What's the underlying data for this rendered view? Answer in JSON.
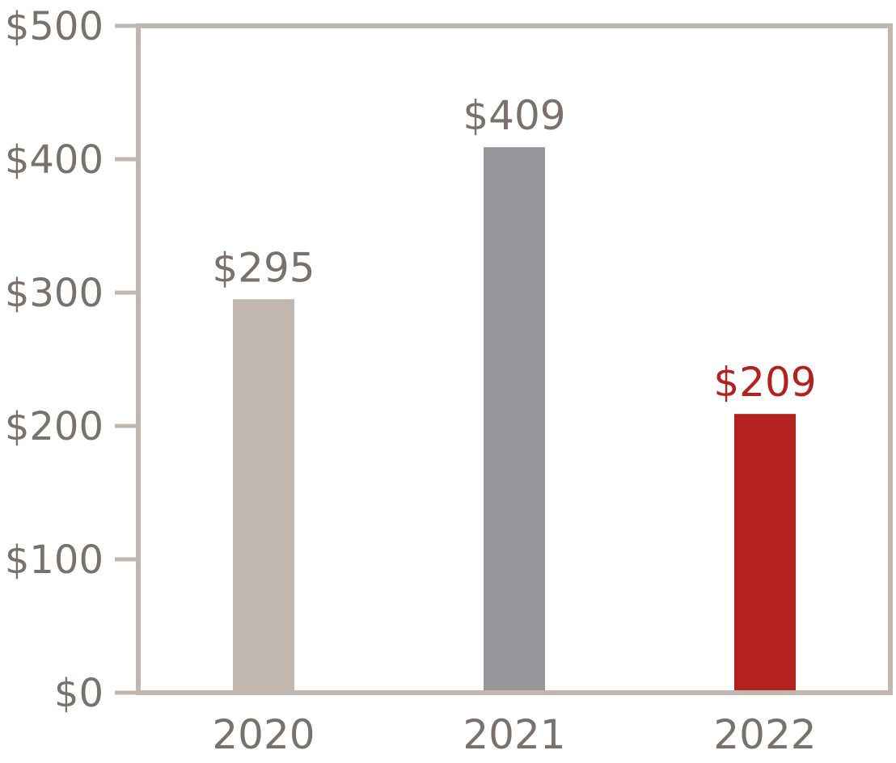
{
  "chart_data": {
    "type": "bar",
    "title": "",
    "xlabel": "",
    "ylabel": "",
    "categories": [
      "2020",
      "2021",
      "2022"
    ],
    "values": [
      295,
      409,
      209
    ],
    "data_labels": [
      "$295",
      "$409",
      "$209"
    ],
    "ylim": [
      0,
      500
    ],
    "y_ticks": [
      0,
      100,
      200,
      300,
      400,
      500
    ],
    "y_tick_labels": [
      "$0",
      "$100",
      "$200",
      "$300",
      "$400",
      "$500"
    ],
    "grid": false,
    "legend": "none",
    "colors": {
      "bars": [
        "#c1b7ae",
        "#96979a",
        "#b3221f"
      ],
      "labels": [
        "#7a716d",
        "#7a716d",
        "#b3221f"
      ],
      "frame": "#c1b7ae",
      "tick_text": "#7a716d"
    }
  }
}
